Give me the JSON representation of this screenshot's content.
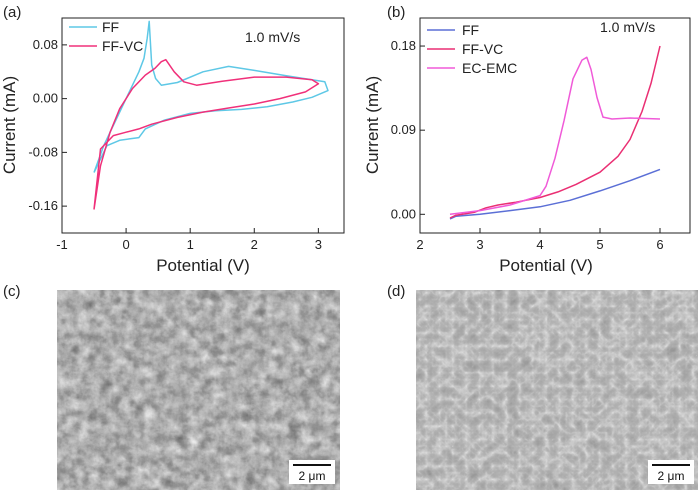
{
  "colors": {
    "ff": "#5ec8e6",
    "ffvc": "#f0307a",
    "ff_b": "#5b6fd6",
    "ffvc_b": "#ea2f73",
    "ecemc": "#f05ad8",
    "axis": "#222222"
  },
  "chart_data": [
    {
      "panel": "(a)",
      "type": "line",
      "annotation": "1.0 mV/s",
      "xlabel": "Potential (V)",
      "ylabel": "Current (mA)",
      "xlim": [
        -1,
        3.4
      ],
      "ylim": [
        -0.2,
        0.12
      ],
      "xticks": [
        -1,
        0,
        1,
        2,
        3
      ],
      "xtick_labels": [
        "-1",
        "0",
        "1",
        "2",
        "3"
      ],
      "yticks": [
        -0.16,
        -0.08,
        0.0,
        0.08
      ],
      "ytick_labels": [
        "-0.16",
        "-0.08",
        "0.00",
        "0.08"
      ],
      "legend": [
        "FF",
        "FF-VC"
      ],
      "series": [
        {
          "name": "FF",
          "color_key": "ff",
          "x": [
            -0.5,
            -0.35,
            -0.2,
            -0.05,
            0.1,
            0.2,
            0.28,
            0.33,
            0.36,
            0.4,
            0.46,
            0.55,
            0.8,
            1.2,
            1.6,
            2.0,
            2.5,
            2.9,
            3.1,
            3.15,
            2.9,
            2.6,
            2.2,
            1.8,
            1.4,
            1.0,
            0.6,
            0.3,
            0.2,
            0.05,
            -0.1,
            -0.3,
            -0.5
          ],
          "y": [
            -0.11,
            -0.07,
            -0.04,
            -0.01,
            0.02,
            0.04,
            0.06,
            0.09,
            0.115,
            0.05,
            0.03,
            0.02,
            0.024,
            0.04,
            0.048,
            0.042,
            0.034,
            0.028,
            0.025,
            0.012,
            0.002,
            -0.005,
            -0.012,
            -0.016,
            -0.018,
            -0.022,
            -0.032,
            -0.045,
            -0.058,
            -0.06,
            -0.062,
            -0.07,
            -0.11
          ]
        },
        {
          "name": "FF-VC",
          "color_key": "ffvc",
          "x": [
            -0.5,
            -0.4,
            -0.25,
            -0.1,
            0.1,
            0.3,
            0.45,
            0.55,
            0.62,
            0.75,
            0.9,
            1.1,
            1.5,
            2.0,
            2.5,
            2.9,
            3.0,
            2.8,
            2.4,
            2.0,
            1.6,
            1.2,
            0.8,
            0.4,
            0.2,
            0.0,
            -0.2,
            -0.4,
            -0.5
          ],
          "y": [
            -0.165,
            -0.1,
            -0.05,
            -0.015,
            0.015,
            0.035,
            0.045,
            0.055,
            0.058,
            0.04,
            0.025,
            0.02,
            0.026,
            0.032,
            0.032,
            0.028,
            0.022,
            0.01,
            0.0,
            -0.008,
            -0.014,
            -0.02,
            -0.028,
            -0.038,
            -0.045,
            -0.05,
            -0.055,
            -0.075,
            -0.165
          ]
        }
      ]
    },
    {
      "panel": "(b)",
      "type": "line",
      "annotation": "1.0 mV/s",
      "xlabel": "Potential (V)",
      "ylabel": "Current (mA)",
      "xlim": [
        2,
        6.5
      ],
      "ylim": [
        -0.02,
        0.21
      ],
      "xticks": [
        2,
        3,
        4,
        5,
        6
      ],
      "xtick_labels": [
        "2",
        "3",
        "4",
        "5",
        "6"
      ],
      "yticks": [
        0.0,
        0.09,
        0.18
      ],
      "ytick_labels": [
        "0.00",
        "0.09",
        "0.18"
      ],
      "legend": [
        "FF",
        "FF-VC",
        "EC-EMC"
      ],
      "series": [
        {
          "name": "FF",
          "color_key": "ff_b",
          "x": [
            2.5,
            2.6,
            3.0,
            3.5,
            4.0,
            4.5,
            5.0,
            5.5,
            6.0
          ],
          "y": [
            -0.005,
            -0.002,
            0.0,
            0.004,
            0.008,
            0.015,
            0.025,
            0.036,
            0.048
          ]
        },
        {
          "name": "FF-VC",
          "color_key": "ffvc_b",
          "x": [
            2.5,
            2.6,
            2.9,
            3.1,
            3.3,
            3.6,
            4.0,
            4.3,
            4.6,
            5.0,
            5.3,
            5.5,
            5.7,
            5.85,
            6.0
          ],
          "y": [
            -0.004,
            -0.001,
            0.002,
            0.007,
            0.01,
            0.013,
            0.018,
            0.024,
            0.032,
            0.045,
            0.062,
            0.08,
            0.11,
            0.14,
            0.18
          ]
        },
        {
          "name": "EC-EMC",
          "color_key": "ecemc",
          "x": [
            2.5,
            3.0,
            3.5,
            4.0,
            4.1,
            4.25,
            4.4,
            4.55,
            4.7,
            4.78,
            4.85,
            4.95,
            5.05,
            5.2,
            5.5,
            6.0
          ],
          "y": [
            0.0,
            0.004,
            0.01,
            0.02,
            0.03,
            0.06,
            0.1,
            0.145,
            0.165,
            0.168,
            0.155,
            0.125,
            0.104,
            0.102,
            0.103,
            0.102
          ]
        }
      ]
    }
  ],
  "images": [
    {
      "panel": "(c)",
      "scale_bar": "2 μm"
    },
    {
      "panel": "(d)",
      "scale_bar": "2 μm"
    }
  ]
}
